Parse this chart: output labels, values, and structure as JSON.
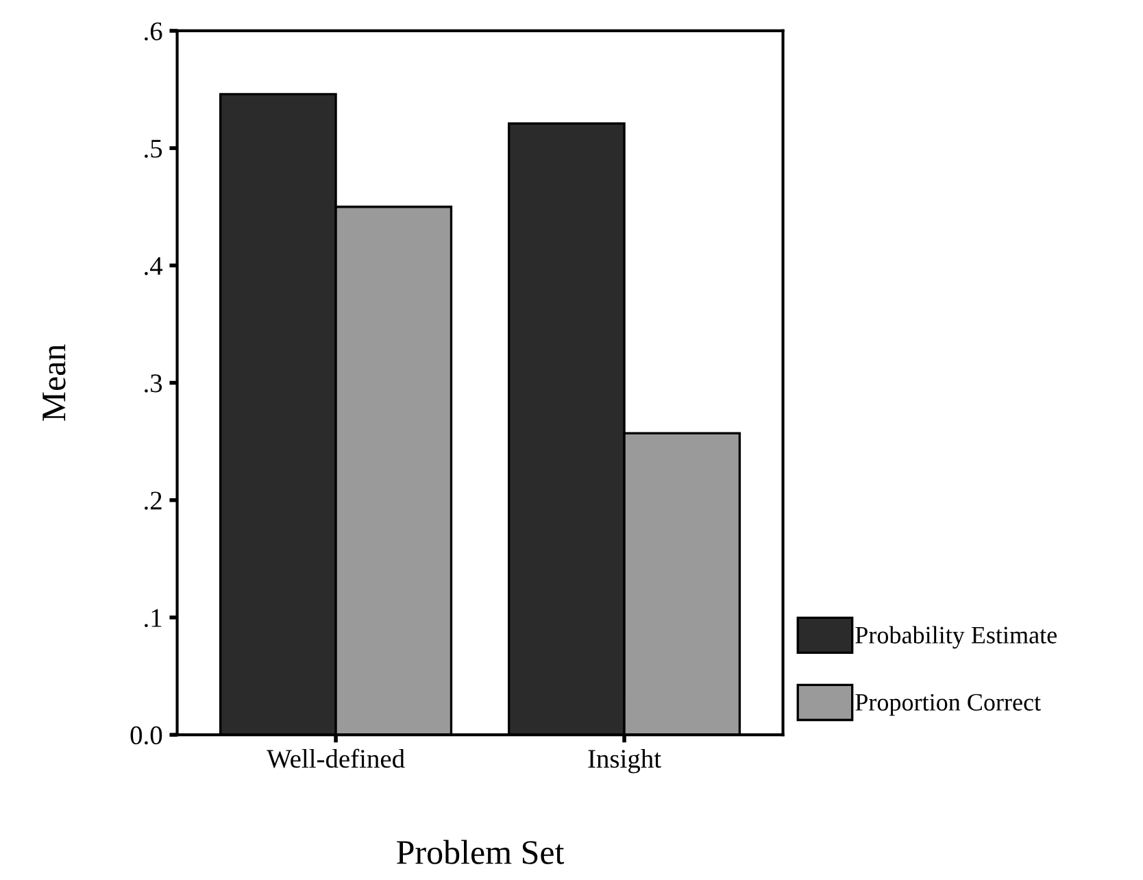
{
  "chart_data": {
    "type": "bar",
    "xlabel": "Problem Set",
    "ylabel": "Mean",
    "categories": [
      "Well-defined",
      "Insight"
    ],
    "series": [
      {
        "name": "Probability Estimate",
        "color": "#2b2b2b",
        "values": [
          0.546,
          0.521
        ]
      },
      {
        "name": "Proportion Correct",
        "color": "#9a9a9a",
        "values": [
          0.45,
          0.257
        ]
      }
    ],
    "ylim": [
      0,
      0.6
    ],
    "yticks": [
      {
        "value": 0,
        "label": "0.0"
      },
      {
        "value": 0.1,
        "label": ".1"
      },
      {
        "value": 0.2,
        "label": ".2"
      },
      {
        "value": 0.3,
        "label": ".3"
      },
      {
        "value": 0.4,
        "label": ".4"
      },
      {
        "value": 0.5,
        "label": ".5"
      },
      {
        "value": 0.6,
        "label": ".6"
      }
    ],
    "grid": false,
    "legend": "bottom right"
  }
}
